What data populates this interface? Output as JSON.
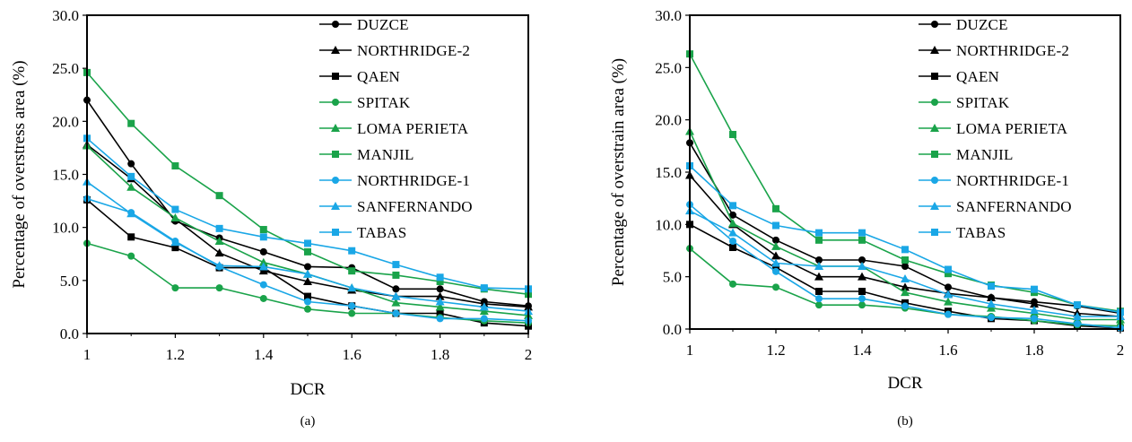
{
  "colors": {
    "black": "#000000",
    "green": "#1aa34a",
    "blue": "#1aa7e6"
  },
  "chart_data": [
    {
      "type": "line",
      "caption": "(a)",
      "xlabel": "DCR",
      "ylabel": "Percentage of overstress area (%)",
      "xlim": [
        1,
        2
      ],
      "ylim": [
        0,
        30
      ],
      "x_ticks": [
        "1",
        "1.2",
        "1.4",
        "1.6",
        "1.8",
        "2"
      ],
      "y_ticks": [
        "0.0",
        "5.0",
        "10.0",
        "15.0",
        "20.0",
        "25.0",
        "30.0"
      ],
      "x": [
        1,
        1.1,
        1.2,
        1.3,
        1.4,
        1.5,
        1.6,
        1.7,
        1.8,
        1.9,
        2
      ],
      "legend_position": "top-right",
      "series": [
        {
          "name": "DUZCE",
          "color": "#000000",
          "marker": "circle",
          "values": [
            22.0,
            16.0,
            10.6,
            9.0,
            7.7,
            6.3,
            6.2,
            4.2,
            4.2,
            3.0,
            2.6
          ]
        },
        {
          "name": "NORTHRIDGE-2",
          "color": "#000000",
          "marker": "triangle",
          "values": [
            17.8,
            14.6,
            10.8,
            7.6,
            5.9,
            4.9,
            4.1,
            3.5,
            3.5,
            2.8,
            2.5
          ]
        },
        {
          "name": "QAEN",
          "color": "#000000",
          "marker": "square",
          "values": [
            12.6,
            9.1,
            8.1,
            6.2,
            6.2,
            3.5,
            2.6,
            1.9,
            1.9,
            1.0,
            0.7
          ]
        },
        {
          "name": "SPITAK",
          "color": "#1aa34a",
          "marker": "circle",
          "values": [
            8.5,
            7.3,
            4.3,
            4.3,
            3.3,
            2.3,
            1.9,
            1.9,
            1.5,
            1.2,
            1.0
          ]
        },
        {
          "name": "LOMA PERIETA",
          "color": "#1aa34a",
          "marker": "triangle",
          "values": [
            17.7,
            13.8,
            10.9,
            8.7,
            6.7,
            5.6,
            4.3,
            2.9,
            2.5,
            2.1,
            1.7
          ]
        },
        {
          "name": "MANJIL",
          "color": "#1aa34a",
          "marker": "square",
          "values": [
            24.6,
            19.8,
            15.8,
            13.0,
            9.8,
            7.7,
            5.9,
            5.5,
            4.9,
            4.2,
            3.7
          ]
        },
        {
          "name": "NORTHRIDGE-1",
          "color": "#1aa7e6",
          "marker": "circle",
          "values": [
            12.7,
            11.4,
            8.7,
            6.3,
            4.6,
            3.0,
            2.6,
            1.9,
            1.4,
            1.4,
            1.2
          ]
        },
        {
          "name": "SANFERNANDO",
          "color": "#1aa7e6",
          "marker": "triangle",
          "values": [
            14.3,
            11.3,
            8.6,
            6.4,
            6.3,
            5.6,
            4.3,
            3.5,
            3.0,
            2.5,
            2.1
          ]
        },
        {
          "name": "TABAS",
          "color": "#1aa7e6",
          "marker": "square",
          "values": [
            18.4,
            14.8,
            11.7,
            9.9,
            9.1,
            8.5,
            7.8,
            6.5,
            5.3,
            4.3,
            4.2
          ]
        }
      ]
    },
    {
      "type": "line",
      "caption": "(b)",
      "xlabel": "DCR",
      "ylabel": "Percentage of overstrain area (%)",
      "xlim": [
        1,
        2
      ],
      "ylim": [
        0,
        30
      ],
      "x_ticks": [
        "1",
        "1.2",
        "1.4",
        "1.6",
        "1.8",
        "2"
      ],
      "y_ticks": [
        "0.0",
        "5.0",
        "10.0",
        "15.0",
        "20.0",
        "25.0",
        "30.0"
      ],
      "x": [
        1,
        1.1,
        1.2,
        1.3,
        1.4,
        1.5,
        1.6,
        1.7,
        1.8,
        1.9,
        2
      ],
      "legend_position": "top-right",
      "series": [
        {
          "name": "DUZCE",
          "color": "#000000",
          "marker": "circle",
          "values": [
            17.8,
            10.9,
            8.5,
            6.6,
            6.6,
            6.0,
            4.0,
            3.0,
            2.6,
            2.2,
            1.5
          ]
        },
        {
          "name": "NORTHRIDGE-2",
          "color": "#000000",
          "marker": "triangle",
          "values": [
            14.7,
            10.0,
            7.0,
            5.0,
            5.0,
            4.0,
            3.4,
            3.0,
            2.4,
            1.5,
            1.2
          ]
        },
        {
          "name": "QAEN",
          "color": "#000000",
          "marker": "square",
          "values": [
            10.0,
            7.8,
            5.9,
            3.6,
            3.6,
            2.5,
            1.7,
            1.0,
            0.8,
            0.3,
            0.1
          ]
        },
        {
          "name": "SPITAK",
          "color": "#1aa34a",
          "marker": "circle",
          "values": [
            7.7,
            4.3,
            4.0,
            2.3,
            2.3,
            2.0,
            1.4,
            1.2,
            0.8,
            0.4,
            0.3
          ]
        },
        {
          "name": "LOMA PERIETA",
          "color": "#1aa34a",
          "marker": "triangle",
          "values": [
            18.9,
            10.1,
            7.9,
            6.0,
            6.0,
            3.5,
            2.6,
            2.0,
            1.5,
            0.9,
            0.9
          ]
        },
        {
          "name": "MANJIL",
          "color": "#1aa34a",
          "marker": "square",
          "values": [
            26.3,
            18.6,
            11.5,
            8.5,
            8.5,
            6.6,
            5.3,
            4.2,
            3.5,
            2.3,
            1.7
          ]
        },
        {
          "name": "NORTHRIDGE-1",
          "color": "#1aa7e6",
          "marker": "circle",
          "values": [
            11.9,
            8.4,
            5.5,
            2.9,
            2.9,
            2.2,
            1.4,
            1.1,
            1.0,
            0.5,
            0.1
          ]
        },
        {
          "name": "SANFERNANDO",
          "color": "#1aa7e6",
          "marker": "triangle",
          "values": [
            11.3,
            9.2,
            6.3,
            6.0,
            6.0,
            4.8,
            3.3,
            2.4,
            1.8,
            1.2,
            1.2
          ]
        },
        {
          "name": "TABAS",
          "color": "#1aa7e6",
          "marker": "square",
          "values": [
            15.6,
            11.8,
            9.9,
            9.2,
            9.2,
            7.6,
            5.7,
            4.1,
            3.8,
            2.3,
            1.6
          ]
        }
      ]
    }
  ]
}
